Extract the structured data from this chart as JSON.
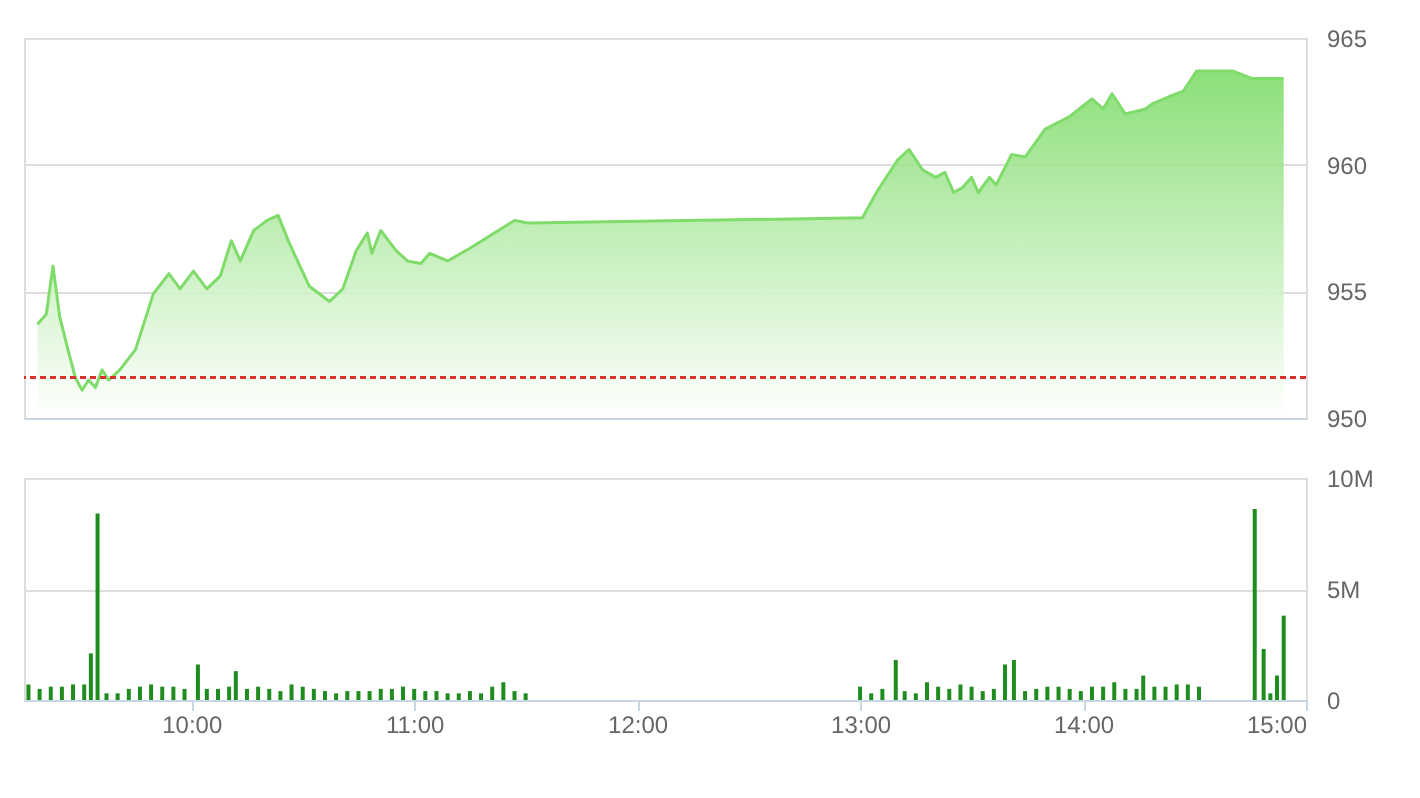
{
  "chart_data": [
    {
      "type": "area",
      "xlim": [
        9.25,
        15.0
      ],
      "ylim": [
        950,
        965
      ],
      "yticks": [
        950,
        955,
        960,
        965
      ],
      "grid": "y",
      "tick_labels": "y",
      "color": "#7fdc6a",
      "x": [
        9.31,
        9.35,
        9.38,
        9.41,
        9.45,
        9.48,
        9.51,
        9.54,
        9.57,
        9.6,
        9.63,
        9.68,
        9.75,
        9.83,
        9.9,
        9.95,
        10.01,
        10.07,
        10.13,
        10.18,
        10.22,
        10.28,
        10.34,
        10.39,
        10.44,
        10.53,
        10.62,
        10.68,
        10.74,
        10.79,
        10.81,
        10.85,
        10.92,
        10.97,
        11.03,
        11.07,
        11.15,
        11.25,
        11.36,
        11.45,
        11.51,
        13.01,
        13.08,
        13.17,
        13.22,
        13.28,
        13.34,
        13.38,
        13.42,
        13.46,
        13.5,
        13.53,
        13.58,
        13.61,
        13.68,
        13.74,
        13.83,
        13.94,
        14.04,
        14.09,
        14.13,
        14.19,
        14.28,
        14.31,
        14.39,
        14.45,
        14.51,
        14.67,
        14.76,
        14.9
      ],
      "values": [
        953.7,
        954.1,
        956.0,
        954.0,
        952.6,
        951.6,
        951.1,
        951.5,
        951.2,
        951.9,
        951.5,
        951.9,
        952.7,
        954.9,
        955.7,
        955.1,
        955.8,
        955.1,
        955.6,
        957.0,
        956.2,
        957.4,
        957.8,
        958.0,
        956.9,
        955.2,
        954.6,
        955.1,
        956.6,
        957.3,
        956.5,
        957.4,
        956.6,
        956.2,
        956.1,
        956.5,
        956.2,
        956.7,
        957.3,
        957.8,
        957.7,
        957.9,
        959.0,
        960.2,
        960.6,
        959.8,
        959.5,
        959.7,
        958.9,
        959.1,
        959.5,
        958.9,
        959.5,
        959.2,
        960.4,
        960.3,
        961.4,
        961.9,
        962.6,
        962.2,
        962.8,
        962.0,
        962.2,
        962.4,
        962.7,
        962.9,
        963.7,
        963.7,
        963.4,
        963.4
      ],
      "ref_lines": [
        {
          "axis": "y",
          "value": 951.6,
          "color": "#d9302a",
          "line_style": "dashed"
        }
      ]
    },
    {
      "type": "bar",
      "xlim": [
        9.25,
        15.0
      ],
      "xticks": [
        {
          "value": 10,
          "label": "10:00"
        },
        {
          "value": 11,
          "label": "11:00"
        },
        {
          "value": 12,
          "label": "12:00"
        },
        {
          "value": 13,
          "label": "13:00"
        },
        {
          "value": 14,
          "label": "14:00"
        },
        {
          "value": 15,
          "label": "15:00"
        }
      ],
      "ylim": [
        0,
        10000000
      ],
      "yticks": [
        0,
        {
          "value": 5000000,
          "label": "5M"
        },
        {
          "value": 10000000,
          "label": "10M"
        }
      ],
      "grid": "y",
      "color": "#1e8c1e",
      "x": [
        9.27,
        9.32,
        9.37,
        9.42,
        9.47,
        9.52,
        9.55,
        9.58,
        9.62,
        9.67,
        9.72,
        9.77,
        9.82,
        9.87,
        9.92,
        9.97,
        10.03,
        10.07,
        10.12,
        10.17,
        10.2,
        10.25,
        10.3,
        10.35,
        10.4,
        10.45,
        10.5,
        10.55,
        10.6,
        10.65,
        10.7,
        10.75,
        10.8,
        10.85,
        10.9,
        10.95,
        11.0,
        11.05,
        11.1,
        11.15,
        11.2,
        11.25,
        11.3,
        11.35,
        11.4,
        11.45,
        11.5,
        13.0,
        13.05,
        13.1,
        13.16,
        13.2,
        13.25,
        13.3,
        13.35,
        13.4,
        13.45,
        13.5,
        13.55,
        13.6,
        13.65,
        13.69,
        13.74,
        13.79,
        13.84,
        13.89,
        13.94,
        13.99,
        14.04,
        14.09,
        14.14,
        14.19,
        14.24,
        14.27,
        14.32,
        14.37,
        14.42,
        14.47,
        14.52,
        14.77,
        14.81,
        14.84,
        14.87,
        14.9
      ],
      "values": [
        700000,
        500000,
        600000,
        600000,
        700000,
        700000,
        2100000,
        8400000,
        300000,
        300000,
        500000,
        600000,
        700000,
        600000,
        600000,
        500000,
        1600000,
        500000,
        500000,
        600000,
        1300000,
        500000,
        600000,
        500000,
        400000,
        700000,
        600000,
        500000,
        400000,
        300000,
        400000,
        400000,
        400000,
        500000,
        500000,
        600000,
        500000,
        400000,
        400000,
        300000,
        300000,
        400000,
        300000,
        600000,
        800000,
        400000,
        300000,
        600000,
        300000,
        500000,
        1800000,
        400000,
        300000,
        800000,
        600000,
        500000,
        700000,
        600000,
        400000,
        500000,
        1600000,
        1800000,
        400000,
        500000,
        600000,
        600000,
        500000,
        400000,
        600000,
        600000,
        800000,
        500000,
        500000,
        1100000,
        600000,
        600000,
        700000,
        700000,
        600000,
        8600000,
        2300000,
        300000,
        1100000,
        3800000
      ]
    }
  ]
}
